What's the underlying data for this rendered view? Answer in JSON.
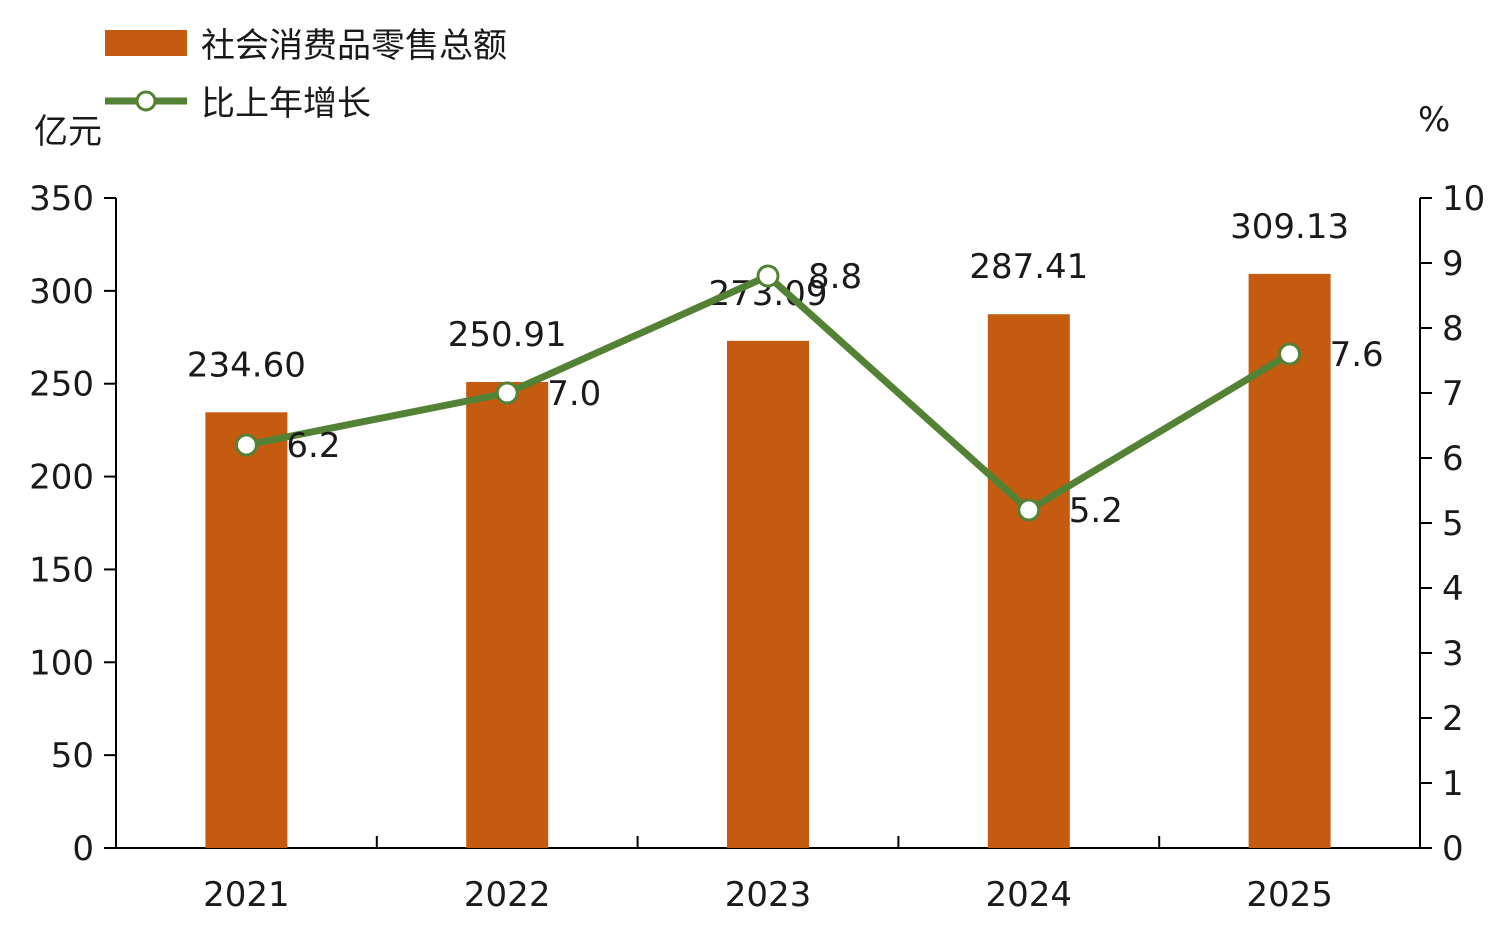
{
  "colors": {
    "bar": "#c55a11",
    "line": "#548235",
    "marker_fill": "#ffffff",
    "axis": "#000000"
  },
  "legend": {
    "bar_label": "社会消费品零售总额",
    "line_label": "比上年增长"
  },
  "units": {
    "left": "亿元",
    "right": "%"
  },
  "chart_data": {
    "type": "bar+line",
    "categories": [
      "2021",
      "2022",
      "2023",
      "2024",
      "2025"
    ],
    "series": [
      {
        "name": "社会消费品零售总额",
        "type": "bar",
        "axis": "left",
        "values": [
          234.6,
          250.91,
          273.09,
          287.41,
          309.13
        ],
        "labels": [
          "234.60",
          "250.91",
          "273.09",
          "287.41",
          "309.13"
        ]
      },
      {
        "name": "比上年增长",
        "type": "line",
        "axis": "right",
        "values": [
          6.2,
          7.0,
          8.8,
          5.2,
          7.6
        ],
        "labels": [
          "6.2",
          "7.0",
          "8.8",
          "5.2",
          "7.6"
        ]
      }
    ],
    "y_left": {
      "label": "亿元",
      "min": 0,
      "max": 350,
      "step": 50
    },
    "y_right": {
      "label": "%",
      "min": 0,
      "max": 10,
      "step": 1
    },
    "grid": false,
    "legend_position": "top-left"
  }
}
